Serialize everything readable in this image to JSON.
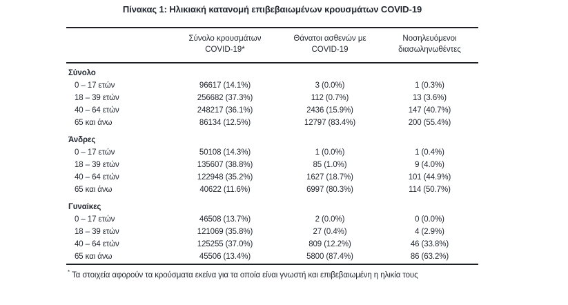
{
  "title": "Πίνακας 1: Ηλικιακή κατανομή επιβεβαιωμένων κρουσμάτων COVID-19",
  "colors": {
    "text": "#232831",
    "rule": "#1c1f24",
    "background": "#ffffff"
  },
  "table": {
    "headers": [
      {
        "line1": "Σύνολο κρουσμάτων",
        "line2": "COVID-19*"
      },
      {
        "line1": "Θάνατοι ασθενών με",
        "line2": "COVID-19"
      },
      {
        "line1": "Νοσηλευόμενοι",
        "line2": "διασωληνωθέντες"
      }
    ],
    "sections": [
      {
        "label": "Σύνολο",
        "rows": [
          {
            "age": "0 – 17 ετών",
            "cases": "96617 (14.1%)",
            "deaths": "3 (0.0%)",
            "intubated": "1 (0.3%)"
          },
          {
            "age": "18 – 39 ετών",
            "cases": "256682 (37.3%)",
            "deaths": "112 (0.7%)",
            "intubated": "13 (3.6%)"
          },
          {
            "age": "40 – 64 ετών",
            "cases": "248217 (36.1%)",
            "deaths": "2436 (15.9%)",
            "intubated": "147 (40.7%)"
          },
          {
            "age": "65 και άνω",
            "cases": "86134 (12.5%)",
            "deaths": "12797 (83.4%)",
            "intubated": "200 (55.4%)"
          }
        ]
      },
      {
        "label": "Άνδρες",
        "rows": [
          {
            "age": "0 – 17 ετών",
            "cases": "50108 (14.3%)",
            "deaths": "1 (0.0%)",
            "intubated": "1 (0.4%)"
          },
          {
            "age": "18 – 39 ετών",
            "cases": "135607 (38.8%)",
            "deaths": "85 (1.0%)",
            "intubated": "9 (4.0%)"
          },
          {
            "age": "40 – 64 ετών",
            "cases": "122948 (35.2%)",
            "deaths": "1627 (18.7%)",
            "intubated": "101 (44.9%)"
          },
          {
            "age": "65 και άνω",
            "cases": "40622 (11.6%)",
            "deaths": "6997 (80.3%)",
            "intubated": "114 (50.7%)"
          }
        ]
      },
      {
        "label": "Γυναίκες",
        "rows": [
          {
            "age": "0 – 17 ετών",
            "cases": "46508 (13.7%)",
            "deaths": "2 (0.0%)",
            "intubated": "0 (0.0%)"
          },
          {
            "age": "18 – 39 ετών",
            "cases": "121069 (35.8%)",
            "deaths": "27 (0.4%)",
            "intubated": "4 (2.9%)"
          },
          {
            "age": "40 – 64 ετών",
            "cases": "125255 (37.0%)",
            "deaths": "809 (12.2%)",
            "intubated": "46 (33.8%)"
          },
          {
            "age": "65 και άνω",
            "cases": "45506 (13.4%)",
            "deaths": "5800 (87.4%)",
            "intubated": "86 (63.2%)"
          }
        ]
      }
    ]
  },
  "footnote": {
    "marker": "*",
    "text": "Τα στοιχεία αφορούν τα κρούσματα εκείνα για τα οποία είναι γνωστή και επιβεβαιωμένη η ηλικία τους"
  }
}
